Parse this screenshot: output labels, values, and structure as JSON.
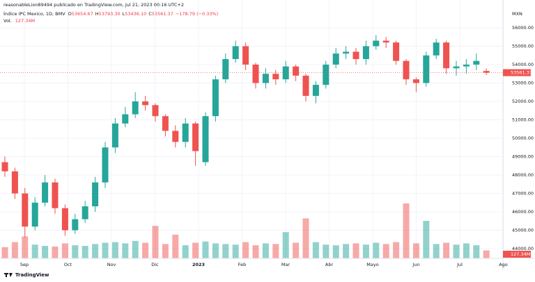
{
  "header": {
    "byline": "reasonableLion89494 publicado en TradingView.com, Jul 21, 2023 00:16 UTC+2",
    "symbol": "Índice IPC Mexico, 1D, BMV",
    "ohlc": [
      {
        "label": "O",
        "value": "53654.67"
      },
      {
        "label": "H",
        "value": "53793.30"
      },
      {
        "label": "L",
        "value": "53436.10"
      },
      {
        "label": "C",
        "value": "53561.37"
      }
    ],
    "change": "−178.79 (−0.33%)",
    "volume_label": "Vol.",
    "volume": "127.34M",
    "currency": "MXN",
    "logo": "TradingView"
  },
  "chart_data": {
    "type": "candlestick",
    "up_color": "#26a69a",
    "down_color": "#ef5350",
    "ylim": [
      43472,
      57132
    ],
    "yticks": [
      {
        "value": 44000,
        "label": "44000.00"
      },
      {
        "value": 45000,
        "label": "45000.00"
      },
      {
        "value": 46000,
        "label": "46000.00"
      },
      {
        "value": 47000,
        "label": "47000.00"
      },
      {
        "value": 48000,
        "label": "48000.00"
      },
      {
        "value": 49000,
        "label": "49000.00"
      },
      {
        "value": 50000,
        "label": "50000.00"
      },
      {
        "value": 51000,
        "label": "51000.00"
      },
      {
        "value": 52000,
        "label": "52000.00"
      },
      {
        "value": 53000,
        "label": "53000.00"
      },
      {
        "value": 54000,
        "label": "54000.00"
      },
      {
        "value": 55000,
        "label": "55000.00"
      },
      {
        "value": 56000,
        "label": "56000.00"
      }
    ],
    "x_labels": [
      "Sep",
      "Oct",
      "Nov",
      "Dic",
      "2023",
      "Feb",
      "Mar",
      "Abr",
      "Mayo",
      "Jun",
      "Jul",
      "Ago"
    ],
    "open": [
      48700,
      48200,
      47000,
      45200,
      46500,
      47600,
      46200,
      45000,
      45600,
      46300,
      47600,
      49500,
      50800,
      51300,
      52000,
      51800,
      51200,
      50400,
      49800,
      50800,
      48700,
      51200,
      53200,
      54300,
      55000,
      54000,
      53000,
      53500,
      53200,
      53900,
      53400,
      52300,
      52900,
      54000,
      54600,
      54700,
      54300,
      55000,
      55300,
      55200,
      54200,
      53200,
      53000,
      54500,
      55200,
      53800,
      53900,
      54000,
      53654.67
    ],
    "high": [
      49000,
      48400,
      47300,
      46800,
      48000,
      47800,
      46400,
      45900,
      46600,
      47900,
      49800,
      51100,
      51700,
      52500,
      52300,
      51900,
      51300,
      50700,
      51100,
      50900,
      51400,
      53400,
      54600,
      55300,
      55200,
      54100,
      53800,
      53700,
      54200,
      54000,
      53500,
      53100,
      54200,
      54900,
      55000,
      54900,
      55300,
      55600,
      55500,
      55300,
      54300,
      53300,
      54700,
      55400,
      55300,
      54200,
      54300,
      54600,
      53793.3
    ],
    "low": [
      47900,
      46700,
      44600,
      45000,
      46300,
      45900,
      44700,
      44800,
      45400,
      46000,
      47300,
      49200,
      50600,
      51100,
      51500,
      50900,
      50100,
      49500,
      49500,
      48500,
      48500,
      50900,
      53000,
      54100,
      53700,
      52700,
      52700,
      52900,
      53000,
      53100,
      52000,
      51900,
      52700,
      53800,
      54300,
      54000,
      54000,
      54800,
      54900,
      54000,
      52900,
      52500,
      52800,
      54300,
      53500,
      53400,
      53500,
      53700,
      53436.1
    ],
    "close": [
      48200,
      47000,
      45200,
      46500,
      47600,
      46200,
      45000,
      45600,
      46300,
      47600,
      49500,
      50800,
      51300,
      52000,
      51800,
      51200,
      50400,
      49800,
      50800,
      49300,
      51200,
      53200,
      54300,
      55000,
      54000,
      53000,
      53500,
      53200,
      53900,
      53400,
      52300,
      52900,
      54000,
      54600,
      54700,
      54300,
      55000,
      55300,
      55200,
      54200,
      53200,
      53000,
      54500,
      55200,
      53800,
      53900,
      54000,
      54200,
      53561.37
    ],
    "volume": [
      180,
      260,
      350,
      220,
      200,
      190,
      240,
      210,
      200,
      230,
      250,
      260,
      240,
      280,
      250,
      520,
      230,
      380,
      210,
      250,
      270,
      240,
      230,
      220,
      260,
      210,
      240,
      230,
      420,
      250,
      640,
      260,
      220,
      210,
      230,
      240,
      220,
      250,
      230,
      260,
      880,
      240,
      600,
      230,
      250,
      220,
      240,
      210,
      127.34
    ],
    "volume_lim": [
      0,
      1000
    ]
  }
}
